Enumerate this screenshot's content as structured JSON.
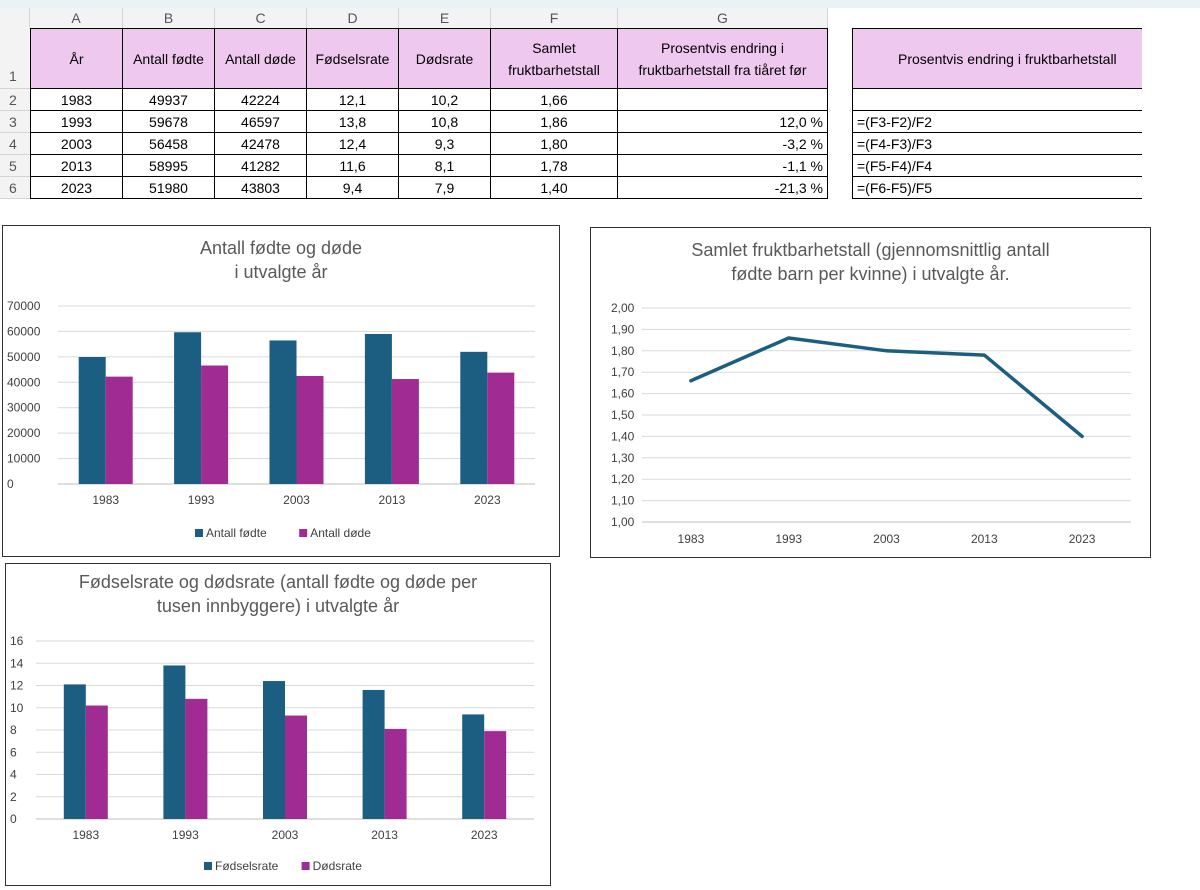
{
  "sheet": {
    "columns": [
      "A",
      "B",
      "C",
      "D",
      "E",
      "F",
      "G"
    ],
    "row_numbers": [
      "1",
      "2",
      "3",
      "4",
      "5",
      "6"
    ],
    "headers": {
      "year": "År",
      "births": "Antall fødte",
      "deaths": "Antall døde",
      "birthrate": "Fødselsrate",
      "deathrate": "Dødsrate",
      "fertility_l1": "Samlet",
      "fertility_l2": "fruktbarhetstall",
      "change_l1": "Prosentvis endring i",
      "change_l2": "fruktbarhetstall fra tiåret før"
    },
    "rows": [
      {
        "year": "1983",
        "births": "49937",
        "deaths": "42224",
        "birthrate": "12,1",
        "deathrate": "10,2",
        "fertility": "1,66",
        "change": ""
      },
      {
        "year": "1993",
        "births": "59678",
        "deaths": "46597",
        "birthrate": "13,8",
        "deathrate": "10,8",
        "fertility": "1,86",
        "change": "12,0 %"
      },
      {
        "year": "2003",
        "births": "56458",
        "deaths": "42478",
        "birthrate": "12,4",
        "deathrate": "9,3",
        "fertility": "1,80",
        "change": "-3,2 %"
      },
      {
        "year": "2013",
        "births": "58995",
        "deaths": "41282",
        "birthrate": "11,6",
        "deathrate": "8,1",
        "fertility": "1,78",
        "change": "-1,1 %"
      },
      {
        "year": "2023",
        "births": "51980",
        "deaths": "43803",
        "birthrate": "9,4",
        "deathrate": "7,9",
        "fertility": "1,40",
        "change": "-21,3 %"
      }
    ],
    "side_table": {
      "header": "Prosentvis endring i fruktbarhetstall",
      "formulas": [
        "",
        "=(F3-F2)/F2",
        "=(F4-F3)/F3",
        "=(F5-F4)/F4",
        "=(F6-F5)/F5"
      ]
    }
  },
  "chart_data": [
    {
      "type": "bar",
      "title_lines": [
        "Antall fødte og døde",
        "i utvalgte år"
      ],
      "categories": [
        "1983",
        "1993",
        "2003",
        "2013",
        "2023"
      ],
      "series": [
        {
          "name": "Antall fødte",
          "values": [
            49937,
            59678,
            56458,
            58995,
            51980
          ],
          "color": "#1b5e82"
        },
        {
          "name": "Antall døde",
          "values": [
            42224,
            46597,
            42478,
            41282,
            43803
          ],
          "color": "#a02b93"
        }
      ],
      "ylim": [
        0,
        70000
      ],
      "yticks": [
        "0",
        "10000",
        "20000",
        "30000",
        "40000",
        "50000",
        "60000",
        "70000"
      ],
      "legend": "bottom"
    },
    {
      "type": "line",
      "title_lines": [
        "Samlet fruktbarhetstall (gjennomsnittlig antall",
        "fødte barn per kvinne) i utvalgte år."
      ],
      "categories": [
        "1983",
        "1993",
        "2003",
        "2013",
        "2023"
      ],
      "series": [
        {
          "name": "Samlet fruktbarhetstall",
          "values": [
            1.66,
            1.86,
            1.8,
            1.78,
            1.4
          ],
          "color": "#1b5e82"
        }
      ],
      "ylim": [
        1.0,
        2.0
      ],
      "yticks": [
        "1,00",
        "1,10",
        "1,20",
        "1,30",
        "1,40",
        "1,50",
        "1,60",
        "1,70",
        "1,80",
        "1,90",
        "2,00"
      ]
    },
    {
      "type": "bar",
      "title_lines": [
        "Fødselsrate og dødsrate (antall fødte og døde per",
        "tusen innbyggere) i utvalgte år"
      ],
      "categories": [
        "1983",
        "1993",
        "2003",
        "2013",
        "2023"
      ],
      "series": [
        {
          "name": "Fødselsrate",
          "values": [
            12.1,
            13.8,
            12.4,
            11.6,
            9.4
          ],
          "color": "#1b5e82"
        },
        {
          "name": "Dødsrate",
          "values": [
            10.2,
            10.8,
            9.3,
            8.1,
            7.9
          ],
          "color": "#a02b93"
        }
      ],
      "ylim": [
        0,
        16
      ],
      "yticks": [
        "0",
        "2",
        "4",
        "6",
        "8",
        "10",
        "12",
        "14",
        "16"
      ],
      "legend": "bottom"
    }
  ]
}
